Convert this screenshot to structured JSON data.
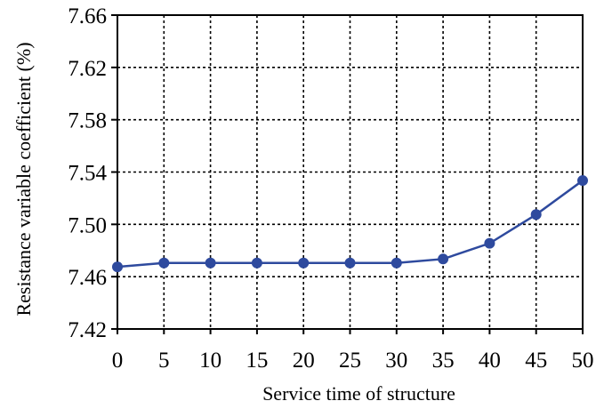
{
  "chart_data": {
    "type": "line",
    "title": "",
    "xlabel": "Service time of structure",
    "ylabel": "Resistance variable coefficient (%)",
    "x": [
      0,
      5,
      10,
      15,
      20,
      25,
      30,
      35,
      40,
      45,
      50
    ],
    "x_tick_labels": [
      "0",
      "5",
      "10",
      "15",
      "20",
      "25",
      "30",
      "35",
      "40",
      "45",
      "50"
    ],
    "xlim": [
      0,
      50
    ],
    "y_ticks": [
      7.42,
      7.46,
      7.5,
      7.54,
      7.58,
      7.62,
      7.66
    ],
    "y_tick_labels": [
      "7.42",
      "7.46",
      "7.50",
      "7.54",
      "7.58",
      "7.62",
      "7.66"
    ],
    "ylim": [
      7.42,
      7.66
    ],
    "grid": true,
    "grid_style": "dotted",
    "series": [
      {
        "color": "#2e4a9e",
        "marker": "circle",
        "values": [
          7.4675,
          7.4705,
          7.4705,
          7.4705,
          7.4705,
          7.4705,
          7.4705,
          7.4735,
          7.4855,
          7.5075,
          7.5335
        ]
      }
    ]
  }
}
